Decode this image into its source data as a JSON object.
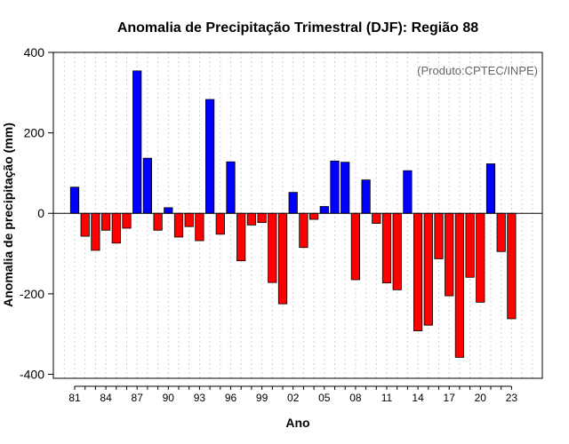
{
  "chart_data": {
    "type": "bar",
    "title": "Anomalia de Precipitação Trimestral (DJF): Região 88",
    "xlabel": "Ano",
    "ylabel": "Anomalia de precipitação (mm)",
    "source_note": "(Produto:CPTEC/INPE)",
    "ylim": [
      -410,
      400
    ],
    "yticks": [
      400,
      200,
      0,
      -200,
      -400
    ],
    "ytick_labels": [
      "400",
      "200",
      "0",
      "-200",
      "-400"
    ],
    "x_first_year": 1981,
    "xtick_labels": [
      "81",
      "84",
      "87",
      "90",
      "93",
      "96",
      "99",
      "02",
      "05",
      "08",
      "11",
      "14",
      "17",
      "20",
      "23"
    ],
    "years": [
      1981,
      1982,
      1983,
      1984,
      1985,
      1986,
      1987,
      1988,
      1989,
      1990,
      1991,
      1992,
      1993,
      1994,
      1995,
      1996,
      1997,
      1998,
      1999,
      2000,
      2001,
      2002,
      2003,
      2004,
      2005,
      2006,
      2007,
      2008,
      2009,
      2010,
      2011,
      2012,
      2013,
      2014,
      2015,
      2016,
      2017,
      2018,
      2019,
      2020,
      2021,
      2022,
      2023
    ],
    "values": [
      65,
      -57,
      -92,
      -42,
      -74,
      -37,
      354,
      137,
      -42,
      14,
      -59,
      -33,
      -68,
      283,
      -52,
      128,
      -118,
      -29,
      -23,
      -172,
      -225,
      52,
      -85,
      -15,
      17,
      130,
      127,
      -165,
      83,
      -25,
      -173,
      -190,
      106,
      -292,
      -278,
      -113,
      -205,
      -358,
      -159,
      -221,
      123,
      -95,
      -262
    ],
    "colors": {
      "positive": "#0000ff",
      "negative": "#ff0000",
      "outline": "#000000",
      "grid": "#d3d3d3",
      "zero_line": "#000000"
    },
    "grid": true
  }
}
